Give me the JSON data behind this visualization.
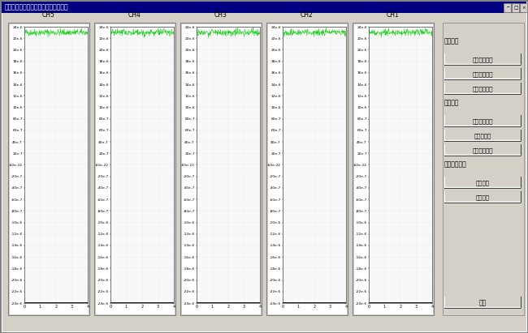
{
  "title": "浅地表功频域电磁探测系统上位机软件",
  "bg_color": "#d4d0c8",
  "window_bg": "#d4d0c8",
  "titlebar_color": "#000080",
  "titlebar_text_color": "#ffffff",
  "plot_bg": "#ffffff",
  "channels": [
    "CH5",
    "CH4",
    "CH3",
    "CH2",
    "CH1"
  ],
  "ytick_labels": [
    "24e-6",
    "22e-6",
    "20e-6",
    "18e-6",
    "16e-6",
    "14e-6",
    "12e-6",
    "10e-6",
    "80e-7",
    "60e-7",
    "40e-7",
    "20e-7",
    "-60e-22",
    "-20e-7",
    "-40e-7",
    "-60e-7",
    "-80e-7",
    "-10e-6",
    "-12e-6",
    "-14e-6",
    "-16e-6",
    "-18e-6",
    "-20e-6",
    "-22e-6",
    "-24e-6"
  ],
  "ytick_values": [
    2.4e-05,
    2.2e-05,
    2e-05,
    1.8e-05,
    1.6e-05,
    1.4e-05,
    1.2e-05,
    1e-05,
    8e-06,
    6e-06,
    4e-06,
    2e-06,
    0,
    -2e-06,
    -4e-06,
    -6e-06,
    -8e-06,
    -1e-05,
    -1.2e-05,
    -1.4e-05,
    -1.6e-05,
    -1.8e-05,
    -2e-05,
    -2.2e-05,
    -2.4e-05
  ],
  "xtick_labels": [
    "0",
    "1",
    "2",
    "3",
    "4"
  ],
  "section_labels": [
    "检测设置",
    "标定模式",
    "正式采集模式"
  ],
  "button_labels": [
    "检测串行端口",
    "标定参数设置",
    "采集参数设置",
    "通道相位标定",
    "背景场标定",
    "主播相位标定",
    "开始采集",
    "停止采集"
  ],
  "close_button": "关闭",
  "grid_color": "#d0d0d0",
  "grid_linestyle": ":",
  "signal_color_top": "#00cc00",
  "signal_color_bot": "#000000",
  "outer_border_color": "#808080",
  "inner_border_color": "#ffffff",
  "plot_border_color": "#000000"
}
